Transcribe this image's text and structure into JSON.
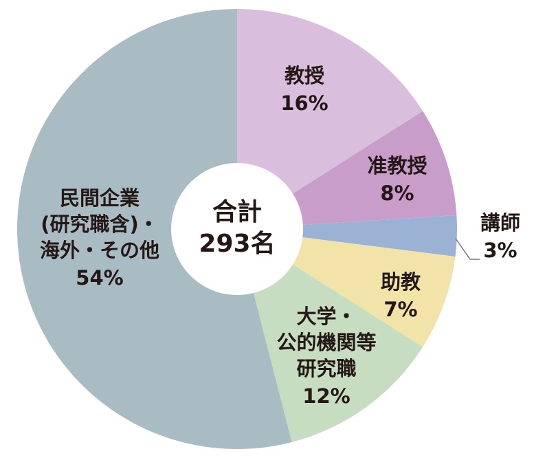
{
  "chart_data": {
    "type": "pie",
    "categories": [
      [
        "教授"
      ],
      [
        "准教授"
      ],
      [
        "講師"
      ],
      [
        "助教"
      ],
      [
        "大学・",
        "公的機関等",
        "研究職"
      ],
      [
        "民間企業",
        "(研究職含)・",
        "海外・その他"
      ]
    ],
    "values": [
      16,
      8,
      3,
      7,
      12,
      54
    ],
    "value_labels": [
      "16%",
      "8%",
      "3%",
      "7%",
      "12%",
      "54%"
    ],
    "colors": [
      "#d9bfdd",
      "#c89dc9",
      "#9cb2d5",
      "#f2e4a9",
      "#c7ddc1",
      "#a9bbc3"
    ],
    "center_label": [
      "合計",
      "293名"
    ]
  }
}
